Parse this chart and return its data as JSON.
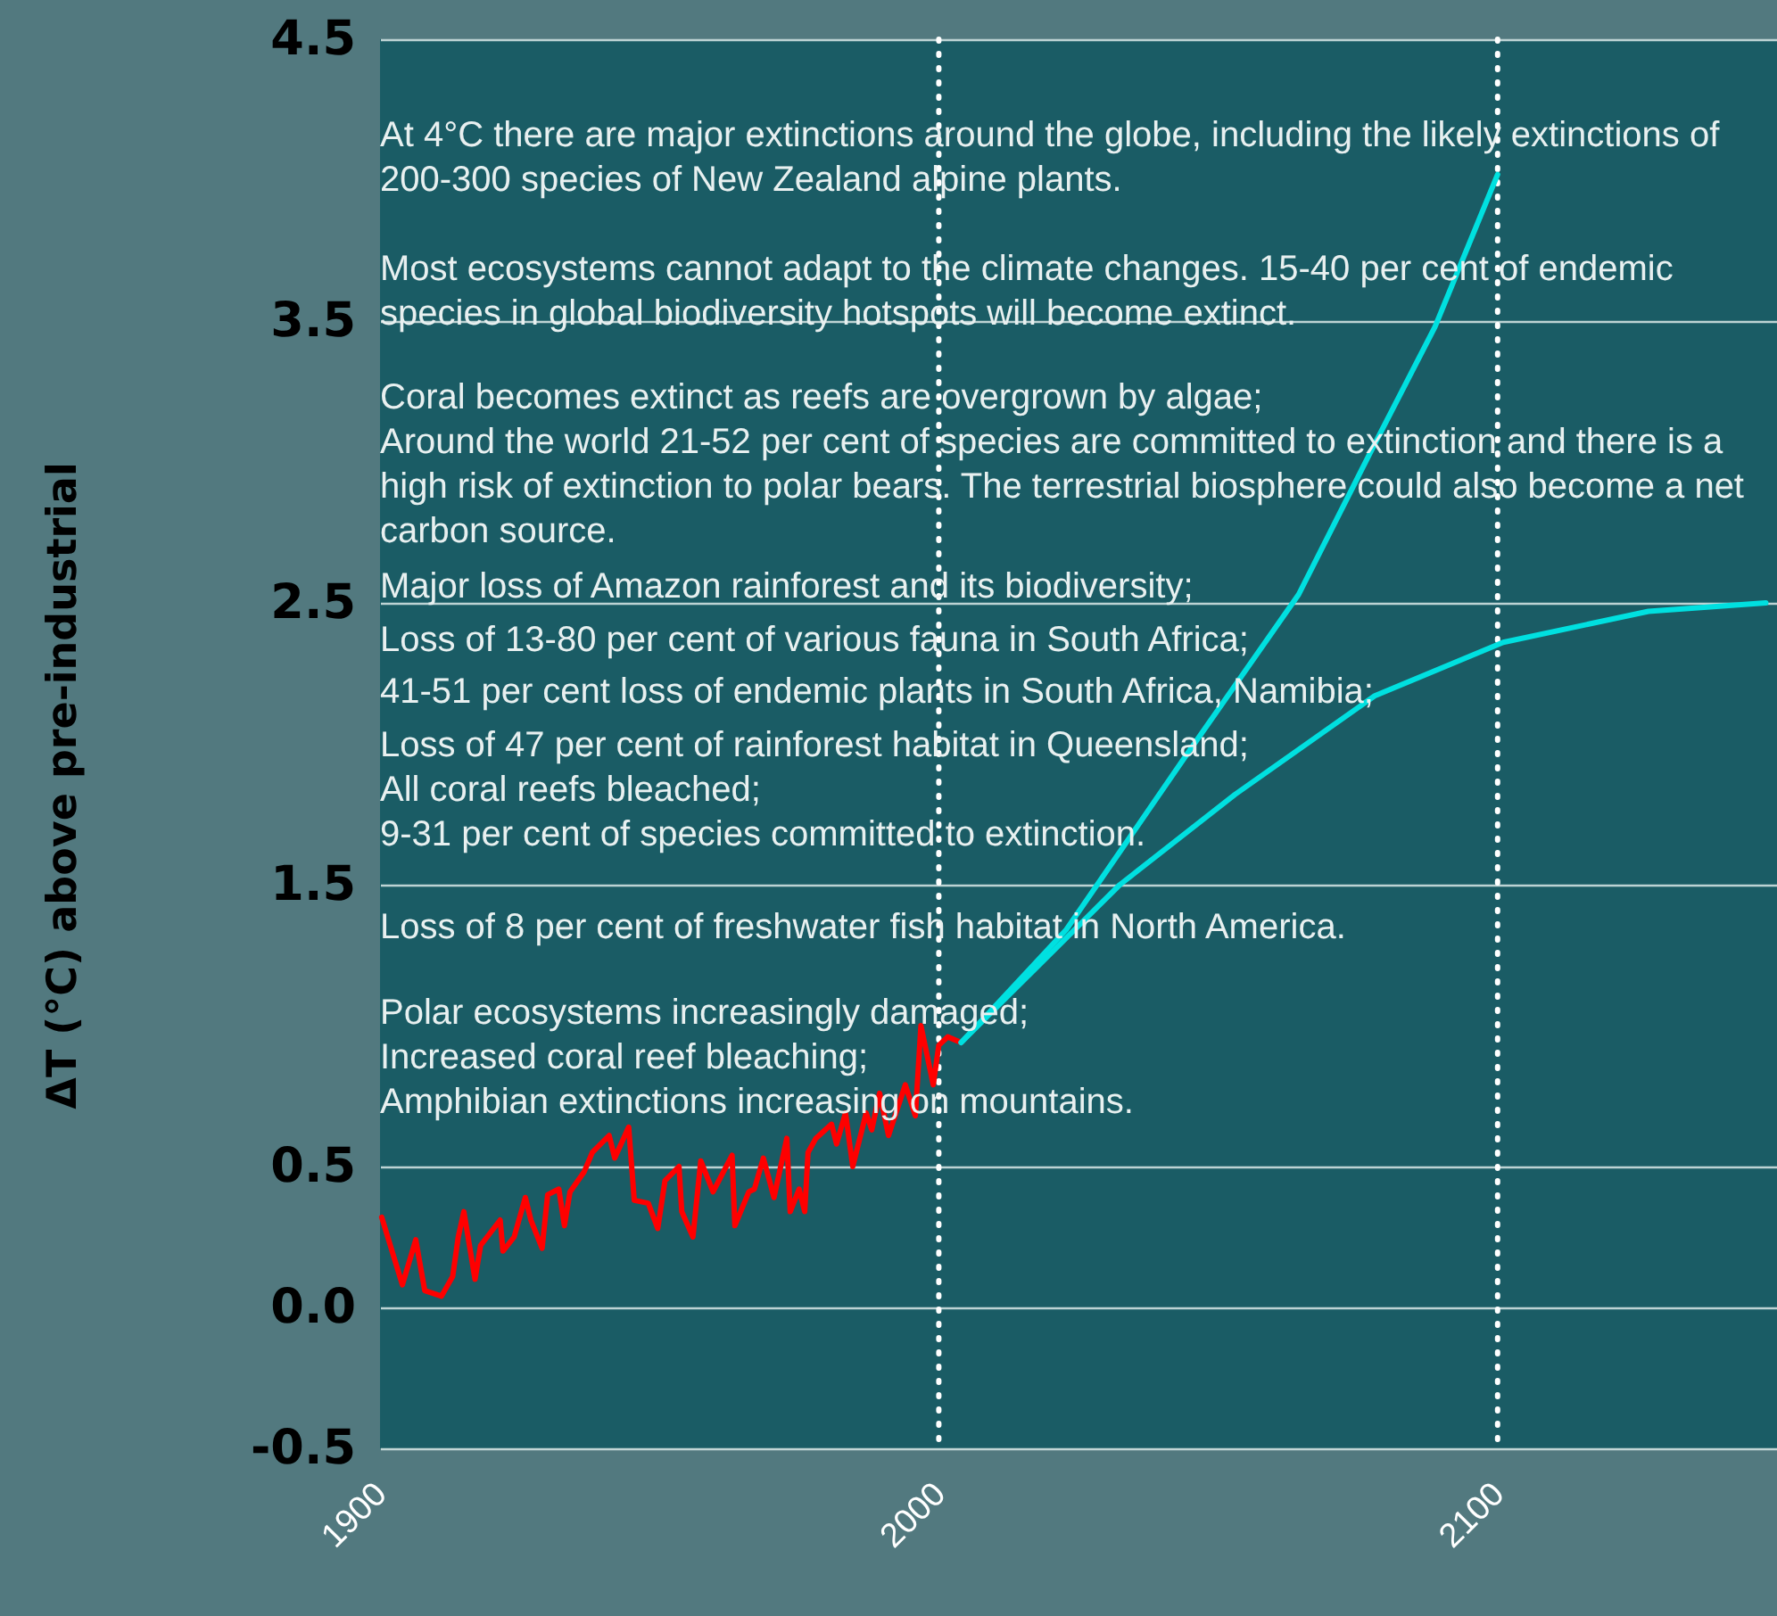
{
  "chart_data": {
    "type": "line",
    "ylabel": "ΔT (°C) above pre-industrial",
    "xlim": [
      1900,
      2150
    ],
    "xticks": [
      1900,
      2000,
      2100
    ],
    "ylim": [
      -0.5,
      4.5
    ],
    "yticks": [
      -0.5,
      {
        "value": 0,
        "label": "0.0"
      },
      0.5,
      1.5,
      2.5,
      3.5,
      4.5
    ],
    "grid": "y",
    "marker": "none",
    "line_style": "solid",
    "series": [
      {
        "color": "#ff0000",
        "x": [
          1900.3,
          1904,
          1906.4,
          1908,
          1911,
          1913,
          1914,
          1915,
          1917,
          1918,
          1921.5,
          1922,
          1924,
          1926,
          1927,
          1929,
          1930,
          1932,
          1933,
          1934,
          1936.5,
          1938,
          1941,
          1942,
          1944.5,
          1945.5,
          1948,
          1949.7,
          1951,
          1953.5,
          1954,
          1956,
          1957.4,
          1959.6,
          1963,
          1963.5,
          1966,
          1967,
          1968.6,
          1970.5,
          1972.8,
          1973.4,
          1975,
          1976,
          1976.6,
          1978,
          1980.8,
          1981.7,
          1983.3,
          1984.6,
          1987,
          1988,
          1989.4,
          1991,
          1994,
          1995.8,
          1996.8,
          1999,
          2000,
          2001.6,
          2004
        ],
        "values": [
          0.32,
          0.08,
          0.24,
          0.06,
          0.04,
          0.11,
          0.25,
          0.34,
          0.1,
          0.22,
          0.31,
          0.2,
          0.25,
          0.39,
          0.31,
          0.21,
          0.4,
          0.42,
          0.29,
          0.41,
          0.48,
          0.55,
          0.61,
          0.53,
          0.64,
          0.38,
          0.37,
          0.28,
          0.45,
          0.5,
          0.34,
          0.25,
          0.52,
          0.41,
          0.54,
          0.29,
          0.41,
          0.42,
          0.53,
          0.39,
          0.6,
          0.34,
          0.42,
          0.34,
          0.55,
          0.6,
          0.65,
          0.58,
          0.69,
          0.5,
          0.69,
          0.63,
          0.76,
          0.61,
          0.79,
          0.68,
          1.0,
          0.79,
          0.93,
          0.96,
          0.94
        ]
      },
      {
        "color": "#00e0e0",
        "x": [
          2004,
          2022.8,
          2043.6,
          2064.4,
          2077.9,
          2088.8,
          2100
        ],
        "values": [
          0.94,
          1.34,
          1.94,
          2.53,
          3.06,
          3.48,
          4.02
        ]
      },
      {
        "color": "#00e0e0",
        "x": [
          2004,
          2032.4,
          2053,
          2078,
          2101,
          2127,
          2148
        ],
        "values": [
          0.94,
          1.5,
          1.82,
          2.17,
          2.36,
          2.47,
          2.5
        ]
      }
    ],
    "ref_lines": [
      {
        "axis": "x",
        "value": 2000,
        "color": "#ffffff",
        "line_style": "dotted"
      },
      {
        "axis": "x",
        "value": 2100,
        "color": "#ffffff",
        "line_style": "dotted"
      }
    ],
    "annotations": [
      "At 4°C there are major extinctions around the globe, including the likely extinctions of\n200-300 species of New Zealand alpine plants.",
      "Most ecosystems cannot adapt to the climate changes. 15-40 per cent of endemic\nspecies in global biodiversity hotspots will become extinct.",
      "Coral becomes extinct as reefs are overgrown by algae;\nAround the world 21-52 per cent of species are committed to extinction and there is a\nhigh risk of extinction to polar bears. The terrestrial biosphere could also become a net\ncarbon source.",
      "Major loss of Amazon rainforest and its biodiversity;",
      "Loss of 13-80 per cent of various fauna in South Africa;",
      "41-51 per cent loss of endemic plants in South Africa, Namibia;",
      "Loss of 47 per cent of rainforest habitat in Queensland;\nAll coral reefs bleached;\n9-31 per cent of species committed to extinction.",
      "Loss of 8 per cent of freshwater fish habitat in North America.",
      "Polar ecosystems increasingly damaged;\nIncreased coral reef bleaching;\nAmphibian extinctions increasing on mountains."
    ]
  }
}
